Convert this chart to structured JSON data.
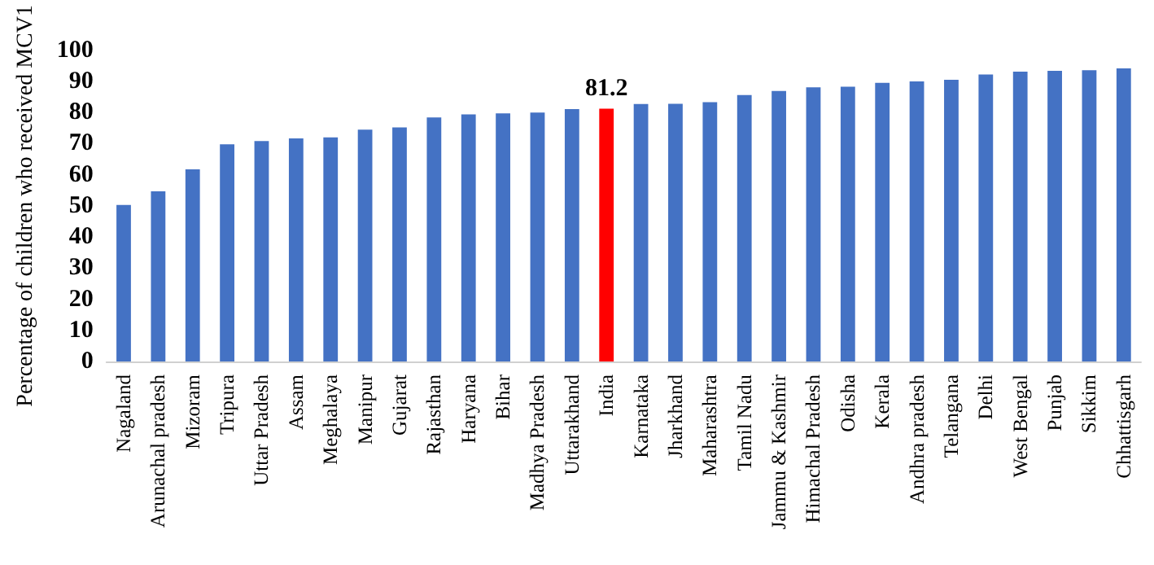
{
  "chart_data": {
    "type": "bar",
    "ylabel": "Percentage of children who received MCV1",
    "categories": [
      "Nagaland",
      "Arunachal pradesh",
      "Mizoram",
      "Tripura",
      "Uttar Pradesh",
      "Assam",
      "Meghalaya",
      "Manipur",
      "Gujarat",
      "Rajasthan",
      "Haryana",
      "Bihar",
      "Madhya Pradesh",
      "Uttarakhand",
      "India",
      "Karnataka",
      "Jharkhand",
      "Maharashtra",
      "Tamil Nadu",
      "Jammu & Kashmir",
      "Himachal Pradesh",
      "Odisha",
      "Kerala",
      "Andhra pradesh",
      "Telangana",
      "Delhi",
      "West Bengal",
      "Punjab",
      "Sikkim",
      "Chhattisgarh"
    ],
    "values": [
      50.3,
      54.7,
      61.7,
      69.8,
      70.8,
      71.7,
      72.0,
      74.5,
      75.2,
      78.4,
      79.4,
      79.7,
      80.0,
      81.1,
      81.2,
      82.7,
      82.8,
      83.3,
      85.6,
      86.9,
      88.1,
      88.3,
      89.5,
      90.0,
      90.5,
      92.2,
      93.1,
      93.4,
      93.6,
      94.2
    ],
    "colors": [
      "#4472c4",
      "#4472c4",
      "#4472c4",
      "#4472c4",
      "#4472c4",
      "#4472c4",
      "#4472c4",
      "#4472c4",
      "#4472c4",
      "#4472c4",
      "#4472c4",
      "#4472c4",
      "#4472c4",
      "#4472c4",
      "#ff0000",
      "#4472c4",
      "#4472c4",
      "#4472c4",
      "#4472c4",
      "#4472c4",
      "#4472c4",
      "#4472c4",
      "#4472c4",
      "#4472c4",
      "#4472c4",
      "#4472c4",
      "#4472c4",
      "#4472c4",
      "#4472c4",
      "#4472c4"
    ],
    "value_labels": [
      null,
      null,
      null,
      null,
      null,
      null,
      null,
      null,
      null,
      null,
      null,
      null,
      null,
      null,
      "81.2",
      null,
      null,
      null,
      null,
      null,
      null,
      null,
      null,
      null,
      null,
      null,
      null,
      null,
      null,
      null
    ],
    "ylim": [
      0,
      100
    ],
    "yticks": [
      0,
      10,
      20,
      30,
      40,
      50,
      60,
      70,
      80,
      90,
      100
    ],
    "grid": false
  }
}
